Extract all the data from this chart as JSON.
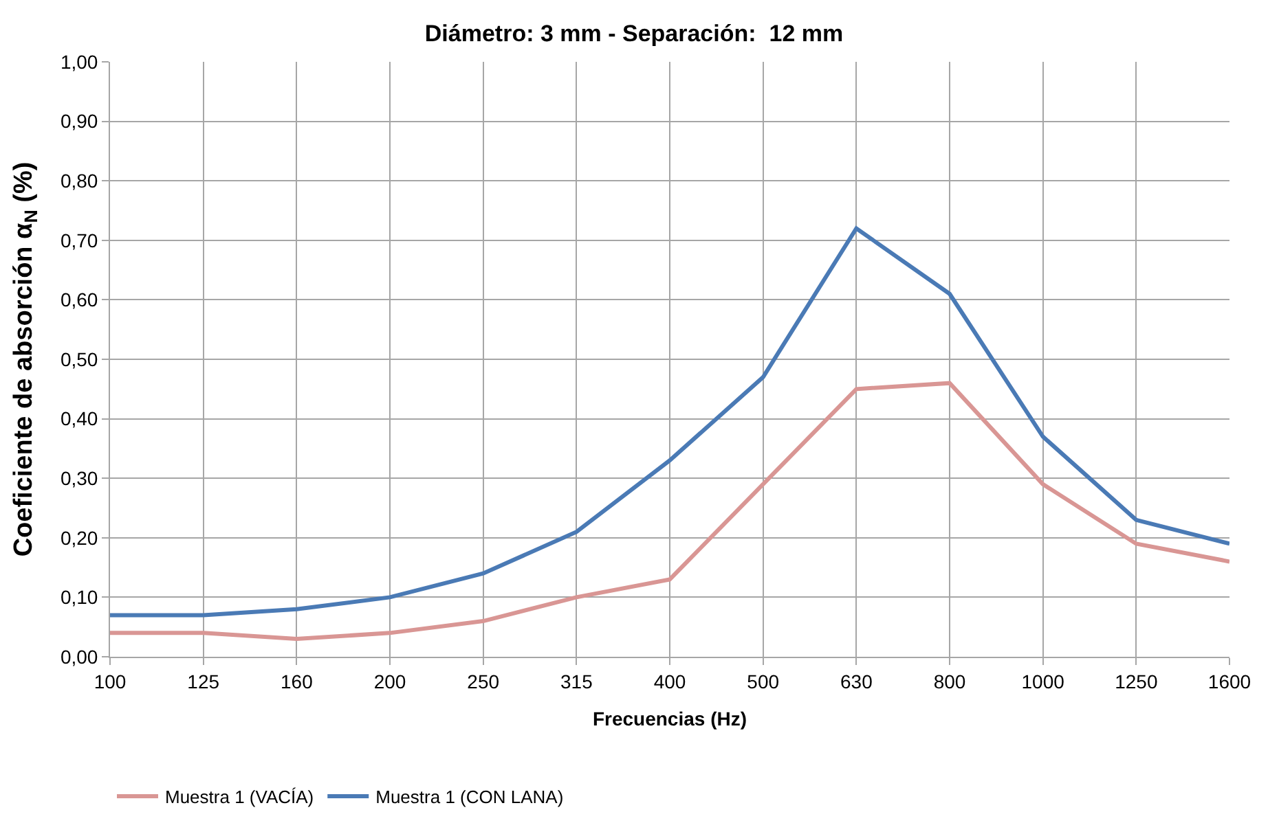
{
  "chart_data": {
    "type": "line",
    "title": "Diámetro: 3 mm - Separación:  12 mm",
    "xlabel": "Frecuencias (Hz)",
    "ylabel": "Coeficiente de absorción α$_{N}$ (%)",
    "categories": [
      "100",
      "125",
      "160",
      "200",
      "250",
      "315",
      "400",
      "500",
      "630",
      "800",
      "1000",
      "1250",
      "1600"
    ],
    "series": [
      {
        "name": "Muestra 1 (VACÍA)",
        "color": "#d99694",
        "values": [
          0.04,
          0.04,
          0.03,
          0.04,
          0.06,
          0.1,
          0.13,
          0.29,
          0.45,
          0.46,
          0.29,
          0.19,
          0.16
        ]
      },
      {
        "name": "Muestra 1 (CON LANA)",
        "color": "#4a7ab5",
        "values": [
          0.07,
          0.07,
          0.08,
          0.1,
          0.14,
          0.21,
          0.33,
          0.47,
          0.72,
          0.61,
          0.37,
          0.23,
          0.19
        ]
      }
    ],
    "ylim": [
      0,
      1
    ],
    "yticks": [
      {
        "value": 0,
        "label": "0,00"
      },
      {
        "value": 0.1,
        "label": "0,10"
      },
      {
        "value": 0.2,
        "label": "0,20"
      },
      {
        "value": 0.3,
        "label": "0,30"
      },
      {
        "value": 0.4,
        "label": "0,40"
      },
      {
        "value": 0.5,
        "label": "0,50"
      },
      {
        "value": 0.6,
        "label": "0,60"
      },
      {
        "value": 0.7,
        "label": "0,70"
      },
      {
        "value": 0.8,
        "label": "0,80"
      },
      {
        "value": 0.9,
        "label": "0,90"
      },
      {
        "value": 1.0,
        "label": "1,00"
      }
    ],
    "grid": true,
    "legend": "bottom",
    "marker": "none",
    "line_style": "solid"
  }
}
